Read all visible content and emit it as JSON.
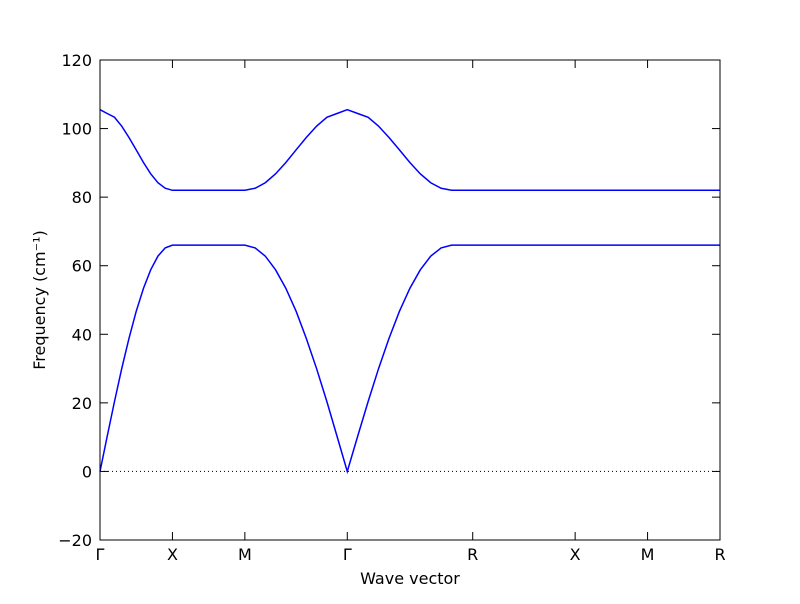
{
  "chart_data": {
    "type": "line",
    "xlabel": "Wave vector",
    "ylabel": "Frequency (cm⁻¹)",
    "x": [
      0,
      0.05,
      0.1,
      0.15,
      0.2,
      0.25,
      0.3,
      0.35,
      0.4,
      0.45,
      0.5,
      1.0,
      1.071,
      1.141,
      1.212,
      1.283,
      1.354,
      1.424,
      1.495,
      1.566,
      1.636,
      1.707,
      1.779,
      1.851,
      1.923,
      1.995,
      2.067,
      2.139,
      2.211,
      2.283,
      2.355,
      2.427,
      2.573,
      3.28,
      3.78,
      4.28
    ],
    "series": [
      {
        "color": "#0000ff",
        "values": [
          0,
          10.3,
          20.4,
          30.0,
          38.8,
          46.7,
          53.4,
          58.8,
          62.8,
          65.2,
          66,
          66,
          65.2,
          62.8,
          58.8,
          53.4,
          46.7,
          38.8,
          30.0,
          20.4,
          10.3,
          0,
          10.3,
          20.4,
          30.0,
          38.8,
          46.7,
          53.4,
          58.8,
          62.8,
          65.2,
          66,
          66,
          66,
          66,
          66
        ]
      },
      {
        "color": "#0000ff",
        "values": [
          105.5,
          104.4,
          103.3,
          100.7,
          97.4,
          93.8,
          90.1,
          86.8,
          84.2,
          82.6,
          82,
          82,
          82.6,
          84.2,
          86.8,
          90.1,
          93.8,
          97.4,
          100.7,
          103.3,
          104.4,
          105.5,
          104.4,
          103.3,
          100.7,
          97.4,
          93.8,
          90.1,
          86.8,
          84.2,
          82.6,
          82,
          82,
          82,
          82,
          82
        ]
      }
    ],
    "xlim": [
      0,
      4.28
    ],
    "xticks": [
      {
        "value": 0,
        "label": "Γ"
      },
      {
        "value": 0.5,
        "label": "X"
      },
      {
        "value": 1.0,
        "label": "M"
      },
      {
        "value": 1.707,
        "label": "Γ"
      },
      {
        "value": 2.573,
        "label": "R"
      },
      {
        "value": 3.28,
        "label": "X"
      },
      {
        "value": 3.78,
        "label": "M"
      },
      {
        "value": 4.28,
        "label": "R"
      }
    ],
    "ylim": [
      -20,
      120
    ],
    "yticks": [
      {
        "value": -20,
        "label": "−20"
      },
      0,
      20,
      40,
      60,
      80,
      100,
      120
    ],
    "hline": 0,
    "grid": false
  }
}
